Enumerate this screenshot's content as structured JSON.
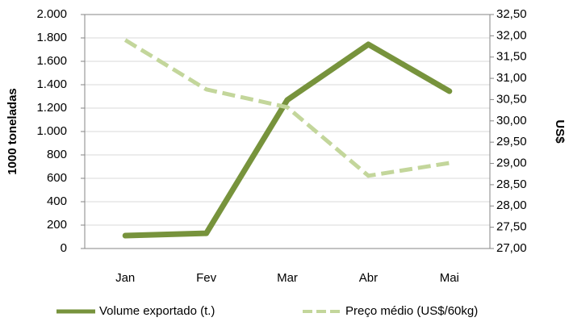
{
  "chart_data": {
    "type": "line",
    "y_label": "1000 toneladas",
    "y2_label": "US$",
    "categories": [
      "Jan",
      "Fev",
      "Mar",
      "Abr",
      "Mai"
    ],
    "series": [
      {
        "name": "Volume exportado (t.)",
        "color": "#77933c",
        "values": [
          110,
          130,
          1270,
          1745,
          1345
        ]
      },
      {
        "name": "Preço médio (US$/60kg)",
        "color": "#c3d69b",
        "axis": "y2",
        "dashed": true,
        "values": [
          31.9,
          30.74,
          30.32,
          28.71,
          29.01
        ]
      }
    ],
    "ylim": [
      0,
      2000
    ],
    "yticks": [
      0,
      200,
      400,
      600,
      800,
      {
        "value": 1000,
        "label": "1.000"
      },
      {
        "value": 1200,
        "label": "1.200"
      },
      {
        "value": 1400,
        "label": "1.400"
      },
      {
        "value": 1600,
        "label": "1.600"
      },
      {
        "value": 1800,
        "label": "1.800"
      },
      {
        "value": 2000,
        "label": "2.000"
      }
    ],
    "y2lim": [
      27,
      32.5
    ],
    "y2ticks": [
      {
        "value": 27,
        "label": "27,00"
      },
      {
        "value": 27.5,
        "label": "27,50"
      },
      {
        "value": 28,
        "label": "28,00"
      },
      {
        "value": 28.5,
        "label": "28,50"
      },
      {
        "value": 29,
        "label": "29,00"
      },
      {
        "value": 29.5,
        "label": "29,50"
      },
      {
        "value": 30,
        "label": "30,00"
      },
      {
        "value": 30.5,
        "label": "30,50"
      },
      {
        "value": 31,
        "label": "31,00"
      },
      {
        "value": 31.5,
        "label": "31,50"
      },
      {
        "value": 32,
        "label": "32,00"
      },
      {
        "value": 32.5,
        "label": "32,50"
      }
    ],
    "grid": true,
    "legend": "bottom"
  }
}
